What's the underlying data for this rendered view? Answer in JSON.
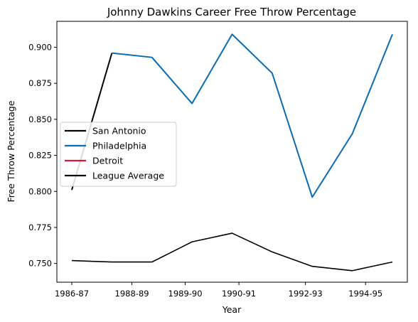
{
  "chart_data": {
    "type": "line",
    "title": "Johnny Dawkins Career Free Throw Percentage",
    "xlabel": "Year",
    "ylabel": "Free Throw Percentage",
    "x_tick_labels": [
      "1986-87",
      "1988-89",
      "1989-90",
      "1990-91",
      "1992-93",
      "1994-95"
    ],
    "ylim": [
      0.737,
      0.918
    ],
    "y_ticks": [
      0.75,
      0.775,
      0.8,
      0.825,
      0.85,
      0.875,
      0.9
    ],
    "y_tick_labels": [
      "0.750",
      "0.775",
      "0.800",
      "0.825",
      "0.850",
      "0.875",
      "0.900"
    ],
    "series": [
      {
        "name": "San Antonio",
        "color": "#000000",
        "x": [
          0,
          1
        ],
        "values": [
          0.801,
          0.896
        ]
      },
      {
        "name": "Philadelphia",
        "color": "#0b6cb3",
        "x": [
          1,
          2,
          3,
          4,
          5,
          6,
          7,
          8
        ],
        "values": [
          0.896,
          0.893,
          0.861,
          0.909,
          0.882,
          0.796,
          0.84,
          0.909
        ]
      },
      {
        "name": "Detroit",
        "color": "#dc143c",
        "x": [],
        "values": []
      },
      {
        "name": "League Average",
        "color": "#000000",
        "x": [
          0,
          1,
          2,
          3,
          4,
          5,
          6,
          7,
          8
        ],
        "values": [
          0.752,
          0.751,
          0.751,
          0.765,
          0.771,
          0.758,
          0.748,
          0.745,
          0.751
        ]
      }
    ],
    "legend_position": "center-left",
    "grid": false
  }
}
